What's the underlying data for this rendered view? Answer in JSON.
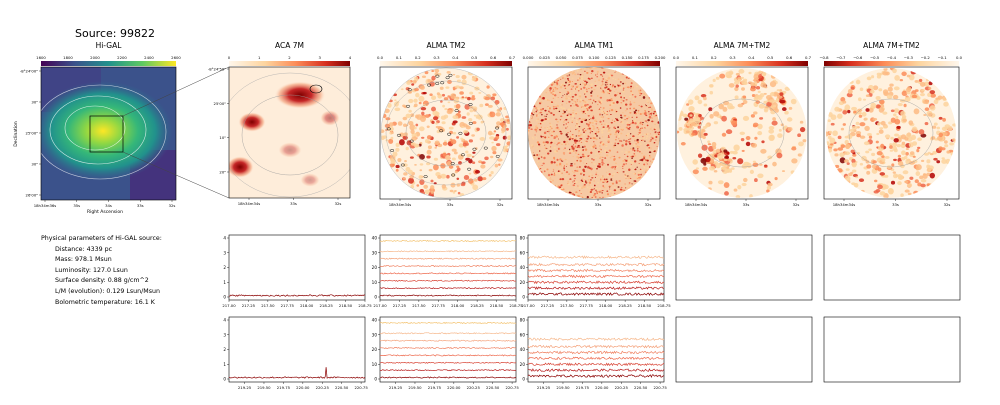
{
  "header": {
    "title": "Source: 99822"
  },
  "params": {
    "heading": "Physical parameters of Hi-GAL source:",
    "items": [
      "Distance: 4339 pc",
      "Mass: 978.1 Msun",
      "Luminosity: 127.0 Lsun",
      "Surface density: 0.88 g/cm^2",
      "L/M (evolution): 0.129 Lsun/Msun",
      "Bolometric temperature: 16.1 K"
    ]
  },
  "colors": {
    "viridis_accent": "#e0dc24",
    "orrd_dark": "#7f0000",
    "line_colors": [
      "#8b0000",
      "#b71c1c",
      "#d84334",
      "#ee6a4e",
      "#f08060",
      "#f4a27b",
      "#f6b98e",
      "#f3c26e"
    ]
  },
  "chart_data": [
    {
      "type": "heatmap",
      "title": "Hi-GAL",
      "colormap": "viridis",
      "colorbar_ticks": [
        "1600",
        "1800",
        "2000",
        "2200",
        "2400",
        "2600"
      ],
      "ylabel": "Declination",
      "xlabel": "Right Ascension",
      "y_ticks": [
        "-8°24'00\"",
        "30\"",
        "25'00\"",
        "30\"",
        "26'00\""
      ],
      "x_ticks": [
        "18h34m36s",
        "35s",
        "34s",
        "33s",
        "32s"
      ]
    },
    {
      "type": "heatmap",
      "title": "ACA 7M",
      "colormap": "OrRd",
      "colorbar_ticks": [
        "0",
        "1",
        "2",
        "3",
        "4"
      ],
      "y_ticks": [
        "-8°24'50\"",
        "25'00\"",
        "10\"",
        "20\""
      ],
      "x_ticks": [
        "18h34m34s",
        "33s",
        "32s"
      ]
    },
    {
      "type": "heatmap",
      "title": "ALMA TM2",
      "colormap": "OrRd",
      "colorbar_ticks": [
        "0.0",
        "0.1",
        "0.2",
        "0.3",
        "0.4",
        "0.5",
        "0.6",
        "0.7"
      ],
      "x_ticks": [
        "18h34m34s",
        "33s",
        "32s"
      ]
    },
    {
      "type": "heatmap",
      "title": "ALMA TM1",
      "colormap": "OrRd",
      "colorbar_ticks": [
        "0.000",
        "0.025",
        "0.050",
        "0.075",
        "0.100",
        "0.125",
        "0.150",
        "0.175",
        "0.200"
      ],
      "x_ticks": [
        "18h34m34s",
        "33s",
        "32s"
      ]
    },
    {
      "type": "heatmap",
      "title": "ALMA 7M+TM2",
      "colormap": "OrRd",
      "colorbar_ticks": [
        "0.0",
        "0.1",
        "0.2",
        "0.3",
        "0.4",
        "0.5",
        "0.6",
        "0.7"
      ],
      "x_ticks": [
        "18h34m34s",
        "33s",
        "32s"
      ]
    },
    {
      "type": "heatmap",
      "title": "ALMA 7M+TM2",
      "colormap": "OrRd",
      "colorbar_ticks": [
        "−0.8",
        "−0.7",
        "−0.6",
        "−0.5",
        "−0.4",
        "−0.3",
        "−0.2",
        "−0.1",
        "0.0"
      ],
      "x_ticks": [
        "18h34m34s",
        "33s",
        "32s"
      ]
    },
    {
      "type": "line",
      "ylim": [
        0,
        4
      ],
      "y_ticks": [
        "0",
        "1",
        "2",
        "3",
        "4"
      ],
      "xlim": [
        217.0,
        218.75
      ],
      "x_ticks": [
        "217.00",
        "217.25",
        "217.50",
        "217.75",
        "218.00",
        "218.25",
        "218.50",
        "218.75"
      ],
      "series": [
        {
          "baseline": 0.1,
          "noise": 0.05,
          "color": "#8b0000"
        }
      ]
    },
    {
      "type": "line",
      "ylim": [
        0,
        40
      ],
      "y_ticks": [
        "0",
        "10",
        "20",
        "30",
        "40"
      ],
      "xlim": [
        217.0,
        218.75
      ],
      "x_ticks": [
        "217.00",
        "217.25",
        "217.50",
        "217.75",
        "218.00",
        "218.25",
        "218.50",
        "218.75"
      ],
      "series": [
        {
          "baseline": 1,
          "noise": 0.4,
          "color": "#8b0000"
        },
        {
          "baseline": 6,
          "noise": 0.4,
          "color": "#b71c1c"
        },
        {
          "baseline": 11,
          "noise": 0.4,
          "color": "#d84334"
        },
        {
          "baseline": 16,
          "noise": 0.4,
          "color": "#ee6a4e"
        },
        {
          "baseline": 21,
          "noise": 0.4,
          "color": "#f08060"
        },
        {
          "baseline": 26,
          "noise": 0.4,
          "color": "#f4a27b"
        },
        {
          "baseline": 31,
          "noise": 0.4,
          "color": "#f6b98e"
        },
        {
          "baseline": 38,
          "noise": 0.4,
          "color": "#f3c26e"
        }
      ]
    },
    {
      "type": "line",
      "ylim": [
        0,
        80
      ],
      "y_ticks": [
        "0",
        "20",
        "40",
        "60",
        "80"
      ],
      "xlim": [
        217.0,
        218.75
      ],
      "x_ticks": [
        "217.00",
        "217.25",
        "217.50",
        "217.75",
        "218.00",
        "218.25",
        "218.50",
        "218.75"
      ],
      "series": [
        {
          "baseline": 4,
          "noise": 1.6,
          "color": "#8b0000"
        },
        {
          "baseline": 12,
          "noise": 1.6,
          "color": "#b71c1c"
        },
        {
          "baseline": 20,
          "noise": 1.6,
          "color": "#d84334"
        },
        {
          "baseline": 28,
          "noise": 1.6,
          "color": "#ee6a4e"
        },
        {
          "baseline": 36,
          "noise": 1.6,
          "color": "#f08060"
        },
        {
          "baseline": 44,
          "noise": 1.6,
          "color": "#f4a27b"
        },
        {
          "baseline": 54,
          "noise": 1.6,
          "color": "#f6b98e"
        }
      ]
    },
    {
      "type": "line",
      "empty": true
    },
    {
      "type": "line",
      "empty": true
    },
    {
      "type": "line",
      "ylim": [
        0,
        4
      ],
      "y_ticks": [
        "0",
        "1",
        "2",
        "3",
        "4"
      ],
      "xlim": [
        219.05,
        220.8
      ],
      "x_ticks": [
        "219.25",
        "219.50",
        "219.75",
        "220.00",
        "220.25",
        "220.50",
        "220.75"
      ],
      "series": [
        {
          "baseline": 0.1,
          "noise": 0.05,
          "color": "#8b0000",
          "spike_x": 220.3,
          "spike_y": 0.8
        }
      ]
    },
    {
      "type": "line",
      "ylim": [
        0,
        40
      ],
      "y_ticks": [
        "0",
        "10",
        "20",
        "30",
        "40"
      ],
      "xlim": [
        219.05,
        220.8
      ],
      "x_ticks": [
        "219.25",
        "219.50",
        "219.75",
        "220.00",
        "220.25",
        "220.50",
        "220.75"
      ],
      "series": [
        {
          "baseline": 1,
          "noise": 0.4,
          "color": "#8b0000"
        },
        {
          "baseline": 6,
          "noise": 0.4,
          "color": "#b71c1c"
        },
        {
          "baseline": 11,
          "noise": 0.4,
          "color": "#d84334"
        },
        {
          "baseline": 16,
          "noise": 0.4,
          "color": "#ee6a4e"
        },
        {
          "baseline": 21,
          "noise": 0.4,
          "color": "#f08060"
        },
        {
          "baseline": 26,
          "noise": 0.4,
          "color": "#f4a27b"
        },
        {
          "baseline": 31,
          "noise": 0.4,
          "color": "#f6b98e"
        },
        {
          "baseline": 38,
          "noise": 0.4,
          "color": "#f3c26e"
        }
      ]
    },
    {
      "type": "line",
      "ylim": [
        0,
        80
      ],
      "y_ticks": [
        "0",
        "20",
        "40",
        "60",
        "80"
      ],
      "xlim": [
        219.05,
        220.8
      ],
      "x_ticks": [
        "219.25",
        "219.50",
        "219.75",
        "220.00",
        "220.25",
        "220.50",
        "220.75"
      ],
      "series": [
        {
          "baseline": 4,
          "noise": 1.6,
          "color": "#8b0000"
        },
        {
          "baseline": 12,
          "noise": 1.6,
          "color": "#b71c1c"
        },
        {
          "baseline": 20,
          "noise": 1.6,
          "color": "#d84334"
        },
        {
          "baseline": 28,
          "noise": 1.6,
          "color": "#ee6a4e"
        },
        {
          "baseline": 36,
          "noise": 1.6,
          "color": "#f08060"
        },
        {
          "baseline": 44,
          "noise": 1.6,
          "color": "#f4a27b"
        },
        {
          "baseline": 54,
          "noise": 1.6,
          "color": "#f6b98e"
        }
      ]
    },
    {
      "type": "line",
      "empty": true
    },
    {
      "type": "line",
      "empty": true
    }
  ]
}
